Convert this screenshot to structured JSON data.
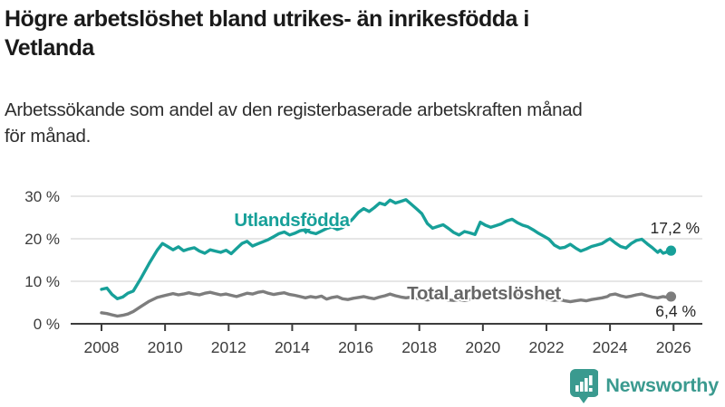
{
  "header": {
    "title_line1": "Högre arbetslöshet bland utrikes- än inrikesfödda i",
    "title_line2": "Vetlanda",
    "subtitle_line1": "Arbetssökande som andel av den registerbaserade arbetskraften månad",
    "subtitle_line2": "för månad."
  },
  "footer": {
    "brand": "Newsworthy"
  },
  "colors": {
    "teal": "#17a099",
    "gray_line": "#7d7d7d",
    "gray_label": "#666666",
    "axis": "#3c3c3c",
    "grid": "#d8d8d8",
    "value_label": "#262626",
    "brand_teal": "#3a9a8f"
  },
  "chart_data": {
    "type": "line",
    "title": "Högre arbetslöshet bland utrikes- än inrikesfödda i Vetlanda",
    "subtitle": "Arbetssökande som andel av den registerbaserade arbetskraften månad för månad.",
    "x_axis": {
      "ticks": [
        2008,
        2010,
        2012,
        2014,
        2016,
        2018,
        2020,
        2022,
        2024,
        2026
      ],
      "range": [
        2007,
        2026.9
      ]
    },
    "y_axis": {
      "ticks": [
        0,
        10,
        20,
        30
      ],
      "tick_labels": [
        "0 %",
        "10 %",
        "20 %",
        "30 %"
      ],
      "unit": "%",
      "range": [
        0,
        31
      ],
      "grid": true
    },
    "series": [
      {
        "name": "Utlandsfödda",
        "label": "Utlandsfödda",
        "end_label": "17,2 %",
        "end_value": 17.2,
        "color": "#17a099",
        "label_color": "#17a099",
        "points": [
          [
            2008.0,
            8.1
          ],
          [
            2008.17,
            8.4
          ],
          [
            2008.33,
            6.9
          ],
          [
            2008.5,
            5.9
          ],
          [
            2008.67,
            6.3
          ],
          [
            2008.83,
            7.2
          ],
          [
            2009.0,
            7.7
          ],
          [
            2009.25,
            10.8
          ],
          [
            2009.5,
            14.2
          ],
          [
            2009.75,
            17.3
          ],
          [
            2009.92,
            18.9
          ],
          [
            2010.08,
            18.2
          ],
          [
            2010.25,
            17.4
          ],
          [
            2010.42,
            18.1
          ],
          [
            2010.58,
            17.2
          ],
          [
            2010.75,
            17.6
          ],
          [
            2010.92,
            17.9
          ],
          [
            2011.08,
            17.1
          ],
          [
            2011.25,
            16.6
          ],
          [
            2011.42,
            17.4
          ],
          [
            2011.58,
            17.1
          ],
          [
            2011.75,
            16.8
          ],
          [
            2011.92,
            17.3
          ],
          [
            2012.08,
            16.5
          ],
          [
            2012.25,
            17.7
          ],
          [
            2012.42,
            18.9
          ],
          [
            2012.58,
            19.4
          ],
          [
            2012.75,
            18.3
          ],
          [
            2012.92,
            18.8
          ],
          [
            2013.08,
            19.3
          ],
          [
            2013.25,
            19.8
          ],
          [
            2013.42,
            20.5
          ],
          [
            2013.58,
            21.2
          ],
          [
            2013.75,
            21.6
          ],
          [
            2013.92,
            20.9
          ],
          [
            2014.08,
            21.3
          ],
          [
            2014.25,
            21.9
          ],
          [
            2014.42,
            22.1
          ],
          [
            2014.58,
            21.5
          ],
          [
            2014.75,
            21.2
          ],
          [
            2014.92,
            21.8
          ],
          [
            2015.08,
            22.4
          ],
          [
            2015.25,
            22.8
          ],
          [
            2015.42,
            22.2
          ],
          [
            2015.58,
            22.6
          ],
          [
            2015.75,
            23.5
          ],
          [
            2015.92,
            24.8
          ],
          [
            2016.08,
            26.2
          ],
          [
            2016.25,
            27.1
          ],
          [
            2016.42,
            26.4
          ],
          [
            2016.58,
            27.3
          ],
          [
            2016.75,
            28.4
          ],
          [
            2016.92,
            28.0
          ],
          [
            2017.08,
            29.1
          ],
          [
            2017.25,
            28.4
          ],
          [
            2017.42,
            28.8
          ],
          [
            2017.58,
            29.2
          ],
          [
            2017.75,
            28.1
          ],
          [
            2017.92,
            27.0
          ],
          [
            2018.08,
            25.9
          ],
          [
            2018.25,
            23.6
          ],
          [
            2018.42,
            22.5
          ],
          [
            2018.58,
            22.9
          ],
          [
            2018.75,
            23.3
          ],
          [
            2018.92,
            22.4
          ],
          [
            2019.08,
            21.5
          ],
          [
            2019.25,
            20.9
          ],
          [
            2019.42,
            21.7
          ],
          [
            2019.58,
            21.4
          ],
          [
            2019.75,
            21.0
          ],
          [
            2019.92,
            23.9
          ],
          [
            2020.08,
            23.2
          ],
          [
            2020.25,
            22.7
          ],
          [
            2020.42,
            23.1
          ],
          [
            2020.58,
            23.5
          ],
          [
            2020.75,
            24.2
          ],
          [
            2020.92,
            24.6
          ],
          [
            2021.08,
            23.8
          ],
          [
            2021.25,
            23.2
          ],
          [
            2021.42,
            22.8
          ],
          [
            2021.58,
            22.1
          ],
          [
            2021.75,
            21.3
          ],
          [
            2021.92,
            20.6
          ],
          [
            2022.08,
            19.9
          ],
          [
            2022.25,
            18.5
          ],
          [
            2022.42,
            17.8
          ],
          [
            2022.58,
            18.0
          ],
          [
            2022.75,
            18.7
          ],
          [
            2022.92,
            17.8
          ],
          [
            2023.08,
            17.1
          ],
          [
            2023.25,
            17.6
          ],
          [
            2023.42,
            18.2
          ],
          [
            2023.58,
            18.5
          ],
          [
            2023.75,
            18.9
          ],
          [
            2023.92,
            19.7
          ],
          [
            2024.0,
            20.0
          ],
          [
            2024.17,
            19.0
          ],
          [
            2024.33,
            18.2
          ],
          [
            2024.5,
            17.8
          ],
          [
            2024.67,
            18.9
          ],
          [
            2024.83,
            19.6
          ],
          [
            2025.0,
            19.9
          ],
          [
            2025.17,
            18.8
          ],
          [
            2025.33,
            17.9
          ],
          [
            2025.5,
            16.8
          ],
          [
            2025.58,
            17.3
          ],
          [
            2025.67,
            16.6
          ],
          [
            2025.83,
            17.0
          ],
          [
            2025.92,
            17.2
          ]
        ]
      },
      {
        "name": "Total arbetslöshet",
        "label": "Total arbetslöshet",
        "end_label": "6,4 %",
        "end_value": 6.4,
        "color": "#7d7d7d",
        "label_color": "#666666",
        "points": [
          [
            2008.0,
            2.6
          ],
          [
            2008.17,
            2.4
          ],
          [
            2008.33,
            2.1
          ],
          [
            2008.5,
            1.8
          ],
          [
            2008.67,
            2.0
          ],
          [
            2008.83,
            2.3
          ],
          [
            2009.0,
            2.9
          ],
          [
            2009.25,
            4.1
          ],
          [
            2009.5,
            5.3
          ],
          [
            2009.75,
            6.2
          ],
          [
            2009.92,
            6.5
          ],
          [
            2010.08,
            6.8
          ],
          [
            2010.25,
            7.1
          ],
          [
            2010.42,
            6.8
          ],
          [
            2010.58,
            7.0
          ],
          [
            2010.75,
            7.3
          ],
          [
            2010.92,
            7.0
          ],
          [
            2011.08,
            6.8
          ],
          [
            2011.25,
            7.2
          ],
          [
            2011.42,
            7.4
          ],
          [
            2011.58,
            7.1
          ],
          [
            2011.75,
            6.8
          ],
          [
            2011.92,
            7.0
          ],
          [
            2012.08,
            6.7
          ],
          [
            2012.25,
            6.4
          ],
          [
            2012.42,
            6.8
          ],
          [
            2012.58,
            7.2
          ],
          [
            2012.75,
            7.0
          ],
          [
            2012.92,
            7.4
          ],
          [
            2013.08,
            7.6
          ],
          [
            2013.25,
            7.2
          ],
          [
            2013.42,
            6.9
          ],
          [
            2013.58,
            7.1
          ],
          [
            2013.75,
            7.3
          ],
          [
            2013.92,
            6.9
          ],
          [
            2014.08,
            6.7
          ],
          [
            2014.25,
            6.4
          ],
          [
            2014.42,
            6.1
          ],
          [
            2014.58,
            6.4
          ],
          [
            2014.75,
            6.2
          ],
          [
            2014.92,
            6.5
          ],
          [
            2015.08,
            5.8
          ],
          [
            2015.25,
            6.2
          ],
          [
            2015.42,
            6.4
          ],
          [
            2015.58,
            5.9
          ],
          [
            2015.75,
            5.7
          ],
          [
            2015.92,
            6.0
          ],
          [
            2016.08,
            6.2
          ],
          [
            2016.25,
            6.4
          ],
          [
            2016.42,
            6.1
          ],
          [
            2016.58,
            5.9
          ],
          [
            2016.75,
            6.3
          ],
          [
            2016.92,
            6.6
          ],
          [
            2017.08,
            7.0
          ],
          [
            2017.25,
            6.6
          ],
          [
            2017.42,
            6.3
          ],
          [
            2017.58,
            6.1
          ],
          [
            2017.75,
            6.3
          ],
          [
            2017.92,
            6.0
          ],
          [
            2018.08,
            5.8
          ],
          [
            2018.25,
            5.6
          ],
          [
            2018.42,
            5.8
          ],
          [
            2018.58,
            6.0
          ],
          [
            2018.75,
            5.8
          ],
          [
            2018.92,
            5.6
          ],
          [
            2019.08,
            5.5
          ],
          [
            2019.25,
            5.7
          ],
          [
            2019.42,
            5.5
          ],
          [
            2019.58,
            5.7
          ],
          [
            2019.75,
            5.9
          ],
          [
            2019.92,
            6.2
          ],
          [
            2020.08,
            6.8
          ],
          [
            2020.25,
            7.3
          ],
          [
            2020.42,
            7.6
          ],
          [
            2020.58,
            7.4
          ],
          [
            2020.75,
            7.2
          ],
          [
            2020.92,
            7.0
          ],
          [
            2021.08,
            6.8
          ],
          [
            2021.25,
            6.5
          ],
          [
            2021.42,
            6.7
          ],
          [
            2021.58,
            6.3
          ],
          [
            2021.75,
            6.1
          ],
          [
            2021.92,
            5.9
          ],
          [
            2022.08,
            5.7
          ],
          [
            2022.25,
            5.5
          ],
          [
            2022.42,
            5.7
          ],
          [
            2022.58,
            5.4
          ],
          [
            2022.75,
            5.2
          ],
          [
            2022.92,
            5.4
          ],
          [
            2023.08,
            5.6
          ],
          [
            2023.25,
            5.4
          ],
          [
            2023.42,
            5.7
          ],
          [
            2023.58,
            5.9
          ],
          [
            2023.75,
            6.1
          ],
          [
            2023.92,
            6.4
          ],
          [
            2024.0,
            6.8
          ],
          [
            2024.17,
            7.0
          ],
          [
            2024.33,
            6.6
          ],
          [
            2024.5,
            6.3
          ],
          [
            2024.67,
            6.5
          ],
          [
            2024.83,
            6.8
          ],
          [
            2025.0,
            7.0
          ],
          [
            2025.17,
            6.6
          ],
          [
            2025.33,
            6.3
          ],
          [
            2025.5,
            6.1
          ],
          [
            2025.67,
            6.4
          ],
          [
            2025.83,
            6.2
          ],
          [
            2025.92,
            6.4
          ]
        ]
      }
    ],
    "legend_position": "inline-labels"
  }
}
